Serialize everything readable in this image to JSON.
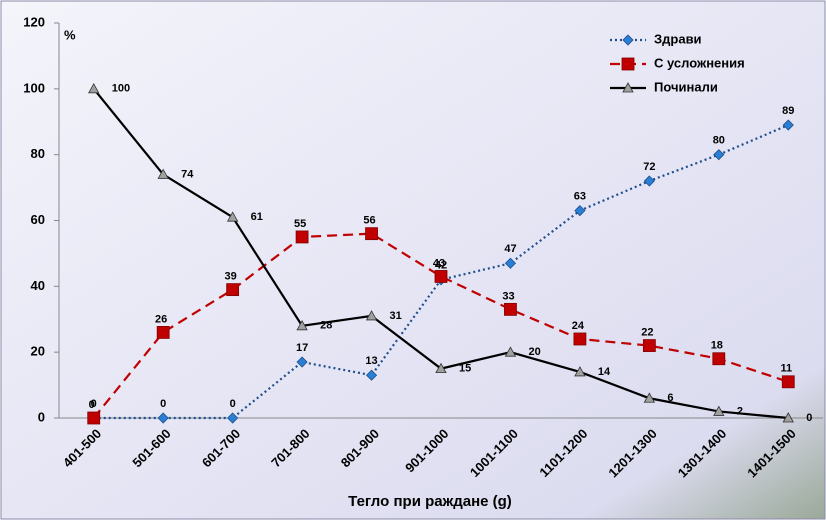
{
  "chart_data": {
    "type": "line",
    "y_unit_label": "%",
    "x_label": "Тегло при раждане (g)",
    "categories": [
      "401-500",
      "501-600",
      "601-700",
      "701-800",
      "801-900",
      "901-1000",
      "1001-1100",
      "1101-1200",
      "1201-1300",
      "1301-1400",
      "1401-1500"
    ],
    "series": [
      {
        "name": "Здрави",
        "color": "#2a7fd4",
        "line_color": "#1f4e8c",
        "dash": "2,3",
        "marker": "diamond",
        "values": [
          0,
          0,
          0,
          17,
          13,
          42,
          47,
          63,
          72,
          80,
          89
        ]
      },
      {
        "name": "С усложнения",
        "color": "#c00000",
        "line_color": "#c00000",
        "dash": "10,6",
        "marker": "square",
        "values": [
          0,
          26,
          39,
          55,
          56,
          43,
          33,
          24,
          22,
          18,
          11
        ]
      },
      {
        "name": "Починали",
        "color": "#a0a0a0",
        "line_color": "#000000",
        "dash": "none",
        "marker": "triangle",
        "values": [
          100,
          74,
          61,
          28,
          31,
          15,
          20,
          14,
          6,
          2,
          0
        ]
      }
    ],
    "ylim": [
      0,
      120
    ],
    "yticks": [
      0,
      20,
      40,
      60,
      80,
      100,
      120
    ],
    "grid": false,
    "legend": "top-right"
  }
}
